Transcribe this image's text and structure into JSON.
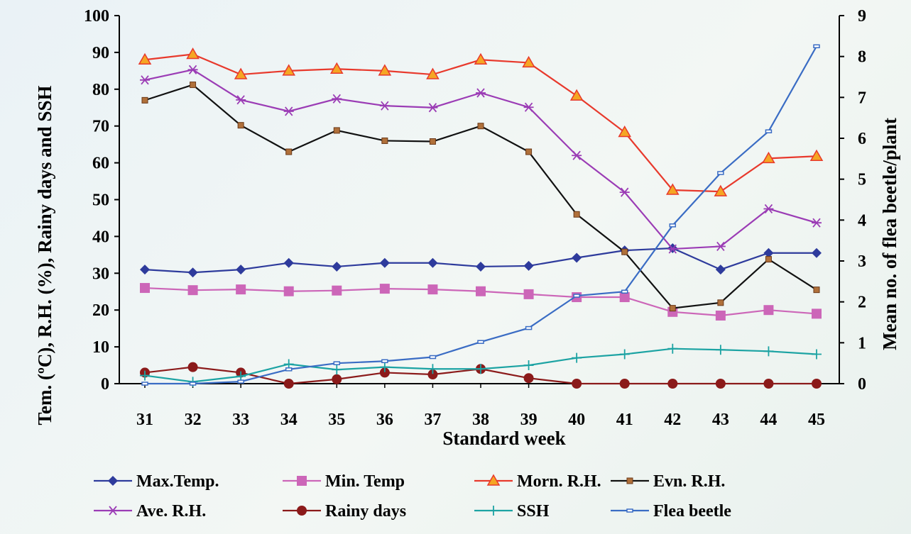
{
  "chart_data": {
    "type": "line",
    "title": "",
    "xlabel": "Standard week",
    "ylabel_left": "Tem. (ºC), R.H. (%), Rainy days and SSH",
    "ylabel_right": "Mean no. of flea beetle/plant",
    "categories": [
      "31",
      "32",
      "33",
      "34",
      "35",
      "36",
      "37",
      "38",
      "39",
      "40",
      "41",
      "42",
      "43",
      "44",
      "45"
    ],
    "ylim_left": [
      0,
      100
    ],
    "yticks_left": [
      0,
      10,
      20,
      30,
      40,
      50,
      60,
      70,
      80,
      90,
      100
    ],
    "ylim_right": [
      0,
      9
    ],
    "yticks_right": [
      0,
      1,
      2,
      3,
      4,
      5,
      6,
      7,
      8,
      9
    ],
    "grid": false,
    "legend_position": "bottom",
    "series": [
      {
        "name": "Max.Temp.",
        "axis": "left",
        "color": "#2e3b9c",
        "marker": "diamond",
        "values": [
          31,
          30.2,
          31,
          32.8,
          31.8,
          32.8,
          32.8,
          31.8,
          32,
          34.2,
          36.2,
          36.8,
          31,
          35.5,
          35.5
        ]
      },
      {
        "name": "Min. Temp",
        "axis": "left",
        "color": "#cc66b8",
        "marker": "square",
        "values": [
          26,
          25.4,
          25.6,
          25.1,
          25.3,
          25.8,
          25.6,
          25.1,
          24.3,
          23.5,
          23.5,
          19.5,
          18.5,
          20,
          19
        ]
      },
      {
        "name": "Morn. R.H.",
        "axis": "left",
        "color": "#e8392c",
        "marker": "triangle",
        "values": [
          88,
          89.5,
          84,
          85,
          85.5,
          85,
          84,
          88,
          87.2,
          78.2,
          68.3,
          52.6,
          52.2,
          61.2,
          61.8
        ]
      },
      {
        "name": "Evn. R.H.",
        "axis": "left",
        "color": "#111111",
        "marker": "smallsquare",
        "values": [
          77,
          81.2,
          70.2,
          63,
          68.8,
          66,
          65.8,
          70,
          63,
          46,
          35.8,
          20.5,
          22,
          33.8,
          25.5
        ]
      },
      {
        "name": "Ave. R.H.",
        "axis": "left",
        "color": "#9b3cb5",
        "marker": "asterisk",
        "values": [
          82.5,
          85.3,
          77.1,
          74,
          77.4,
          75.5,
          75,
          79,
          75.1,
          62,
          52,
          36.6,
          37.3,
          47.5,
          43.7
        ]
      },
      {
        "name": "Rainy days",
        "axis": "left",
        "color": "#8b1a1a",
        "marker": "circle",
        "values": [
          3,
          4.5,
          3,
          0,
          1.2,
          3,
          2.5,
          4,
          1.5,
          0,
          0,
          0,
          0,
          0,
          0
        ]
      },
      {
        "name": "SSH",
        "axis": "left",
        "color": "#1ca3a3",
        "marker": "plus",
        "values": [
          2.2,
          0.5,
          2,
          5.3,
          3.8,
          4.5,
          4,
          4,
          5,
          7,
          8,
          9.5,
          9.2,
          8.8,
          8
        ]
      },
      {
        "name": "Flea beetle",
        "axis": "right",
        "color": "#3a6cc4",
        "marker": "dash",
        "values": [
          0,
          0,
          0.05,
          0.35,
          0.5,
          0.55,
          0.65,
          1.02,
          1.36,
          2.15,
          2.25,
          3.87,
          5.15,
          6.17,
          8.25
        ]
      }
    ]
  }
}
